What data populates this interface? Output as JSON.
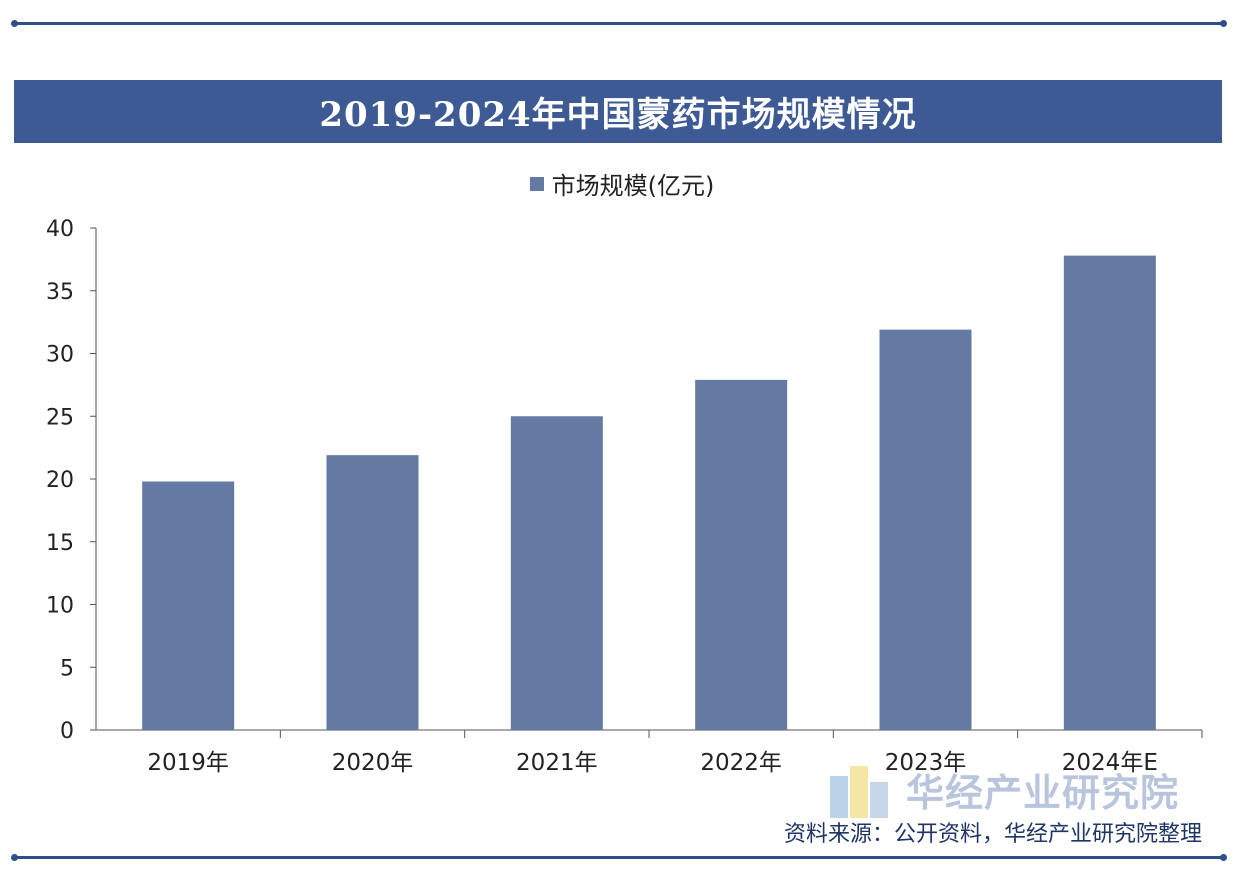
{
  "title": "2019-2024年中国蒙药市场规模情况",
  "legend_label": "市场规模(亿元)",
  "source": "资料来源：公开资料，华经产业研究院整理",
  "watermark": "华经产业研究院",
  "colors": {
    "bar": "#647aa3",
    "title_bg": "#3d5a95",
    "frame": "#2f4e8c"
  },
  "chart_data": {
    "type": "bar",
    "title": "2019-2024年中国蒙药市场规模情况",
    "categories": [
      "2019年",
      "2020年",
      "2021年",
      "2022年",
      "2023年",
      "2024年E"
    ],
    "series": [
      {
        "name": "市场规模(亿元)",
        "values": [
          19.8,
          21.9,
          25.0,
          27.9,
          31.9,
          37.8
        ]
      }
    ],
    "ylim": [
      0,
      40
    ],
    "yticks": [
      0,
      5,
      10,
      15,
      20,
      25,
      30,
      35,
      40
    ],
    "xlabel": "",
    "ylabel": "",
    "grid": false,
    "legend": "top"
  }
}
